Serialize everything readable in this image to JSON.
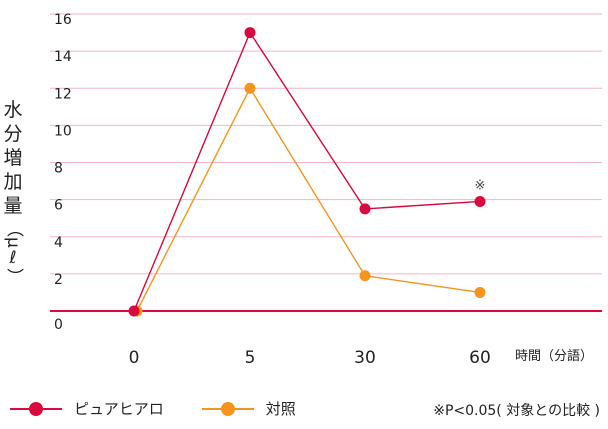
{
  "chart_data": {
    "type": "line",
    "categories": [
      "0",
      "5",
      "30",
      "60"
    ],
    "x_label": "時間（分語）",
    "y_label_chars": [
      "水",
      "分",
      "増",
      "加",
      "量"
    ],
    "y_label_unit": "（μℓ）",
    "ylim": [
      0,
      16
    ],
    "yticks": [
      0,
      2,
      4,
      6,
      8,
      10,
      12,
      14,
      16
    ],
    "grid": true,
    "series": [
      {
        "name": "ピュアヒアロ",
        "color": "#d9083e",
        "values": [
          0,
          15,
          5.5,
          5.9
        ]
      },
      {
        "name": "対照",
        "color": "#f7941e",
        "values": [
          0,
          12,
          1.9,
          1.0
        ]
      }
    ],
    "annotations": [
      {
        "series": 0,
        "category": "60",
        "text": "※"
      }
    ],
    "footnote": "※P<0.05( 対象との比較 )"
  }
}
